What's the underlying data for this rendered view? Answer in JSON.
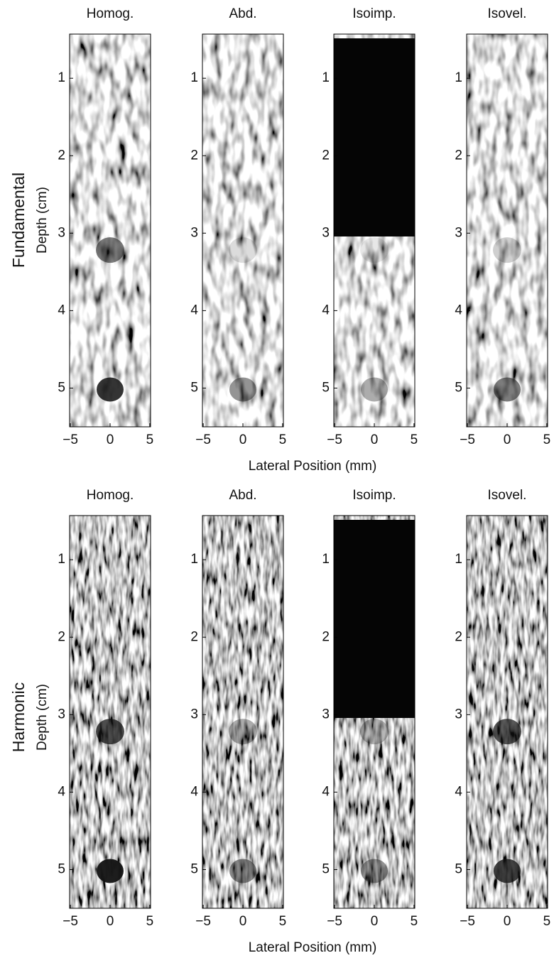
{
  "rows": [
    {
      "label": "Fundamental",
      "ylabel": "Depth (cm)",
      "xlabel": "Lateral Position (mm)"
    },
    {
      "label": "Harmonic",
      "ylabel": "Depth (cm)",
      "xlabel": "Lateral Position (mm)"
    }
  ],
  "chart_data": [
    {
      "type": "image",
      "title": "Homog.",
      "xlim": [
        -5.1,
        5.1
      ],
      "ylim": [
        5.5,
        0.43
      ],
      "xticks": [
        {
          "value": -5,
          "label": "−5"
        },
        0,
        5
      ],
      "yticks": [
        1,
        2,
        3,
        4,
        5
      ]
    },
    {
      "type": "image",
      "title": "Abd.",
      "xlim": [
        -5.1,
        5.1
      ],
      "ylim": [
        5.5,
        0.43
      ],
      "xticks": [
        {
          "value": -5,
          "label": "−5"
        },
        0,
        5
      ],
      "yticks": [
        1,
        2,
        3,
        4,
        5
      ]
    },
    {
      "type": "image",
      "title": "Isoimp.",
      "xlim": [
        -5.1,
        5.1
      ],
      "ylim": [
        5.5,
        0.43
      ],
      "xticks": [
        {
          "value": -5,
          "label": "−5"
        },
        0,
        5
      ],
      "yticks": [
        1,
        2,
        3,
        4,
        5
      ]
    },
    {
      "type": "image",
      "title": "Isovel.",
      "xlim": [
        -5.1,
        5.1
      ],
      "ylim": [
        5.5,
        0.43
      ],
      "xticks": [
        {
          "value": -5,
          "label": "−5"
        },
        0,
        5
      ],
      "yticks": [
        1,
        2,
        3,
        4,
        5
      ]
    },
    {
      "type": "image",
      "title": "Homog.",
      "xlim": [
        -5.1,
        5.1
      ],
      "ylim": [
        5.5,
        0.43
      ],
      "xticks": [
        {
          "value": -5,
          "label": "−5"
        },
        0,
        5
      ],
      "yticks": [
        1,
        2,
        3,
        4,
        5
      ]
    },
    {
      "type": "image",
      "title": "Abd.",
      "xlim": [
        -5.1,
        5.1
      ],
      "ylim": [
        5.5,
        0.43
      ],
      "xticks": [
        {
          "value": -5,
          "label": "−5"
        },
        0,
        5
      ],
      "yticks": [
        1,
        2,
        3,
        4,
        5
      ]
    },
    {
      "type": "image",
      "title": "Isoimp.",
      "xlim": [
        -5.1,
        5.1
      ],
      "ylim": [
        5.5,
        0.43
      ],
      "xticks": [
        {
          "value": -5,
          "label": "−5"
        },
        0,
        5
      ],
      "yticks": [
        1,
        2,
        3,
        4,
        5
      ]
    },
    {
      "type": "image",
      "title": "Isovel.",
      "xlim": [
        -5.1,
        5.1
      ],
      "ylim": [
        5.5,
        0.43
      ],
      "xticks": [
        {
          "value": -5,
          "label": "−5"
        },
        0,
        5
      ],
      "yticks": [
        1,
        2,
        3,
        4,
        5
      ]
    }
  ]
}
